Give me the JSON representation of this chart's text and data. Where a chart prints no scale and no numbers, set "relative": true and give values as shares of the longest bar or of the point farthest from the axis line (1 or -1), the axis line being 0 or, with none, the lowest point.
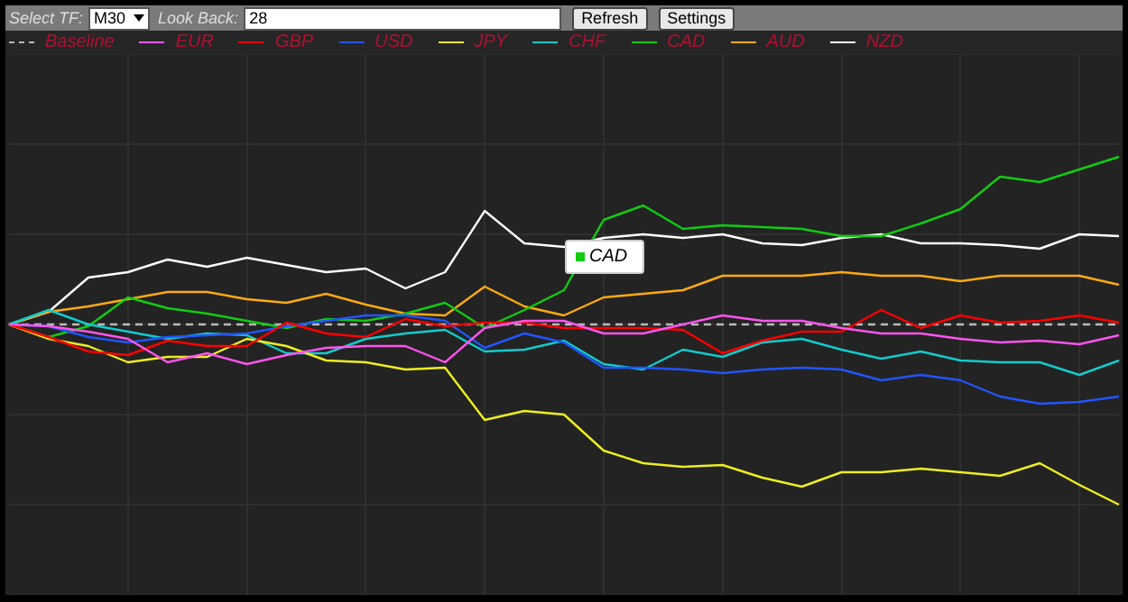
{
  "chart_data": {
    "type": "line",
    "relative": true,
    "categories": [
      null,
      null,
      null,
      null,
      null,
      null,
      null,
      null,
      null,
      null,
      null,
      null,
      null,
      null,
      null,
      null,
      null,
      null,
      null,
      null,
      null,
      null,
      null,
      null,
      null,
      null,
      null,
      null,
      null
    ],
    "series": [
      {
        "name": "EUR",
        "color": "#ff55ee",
        "values": [
          0,
          -0.01,
          -0.04,
          -0.08,
          -0.21,
          -0.16,
          -0.22,
          -0.17,
          -0.13,
          -0.12,
          -0.12,
          -0.21,
          -0.02,
          0.02,
          0.02,
          -0.05,
          -0.05,
          0,
          0.05,
          0.02,
          0.02,
          -0.02,
          -0.05,
          -0.05,
          -0.08,
          -0.1,
          -0.09,
          -0.11,
          -0.06
        ]
      },
      {
        "name": "GBP",
        "color": "#ff0000",
        "values": [
          0,
          -0.07,
          -0.15,
          -0.17,
          -0.09,
          -0.12,
          -0.12,
          0.01,
          -0.05,
          -0.07,
          0.03,
          -0.01,
          0.01,
          0.01,
          -0.02,
          -0.02,
          -0.02,
          -0.03,
          -0.16,
          -0.09,
          -0.04,
          -0.04,
          0.08,
          -0.02,
          0.05,
          0.01,
          0.02,
          0.05,
          0.01
        ]
      },
      {
        "name": "USD",
        "color": "#2255ff",
        "values": [
          0,
          -0.01,
          -0.07,
          -0.1,
          -0.07,
          -0.06,
          -0.05,
          -0.01,
          0.02,
          0.05,
          0.05,
          0.02,
          -0.13,
          -0.05,
          -0.1,
          -0.24,
          -0.24,
          -0.25,
          -0.27,
          -0.25,
          -0.24,
          -0.25,
          -0.31,
          -0.28,
          -0.31,
          -0.4,
          -0.44,
          -0.43,
          -0.4
        ]
      },
      {
        "name": "JPY",
        "color": "#eeee22",
        "values": [
          0,
          -0.08,
          -0.12,
          -0.21,
          -0.18,
          -0.18,
          -0.08,
          -0.12,
          -0.2,
          -0.21,
          -0.25,
          -0.24,
          -0.53,
          -0.48,
          -0.5,
          -0.7,
          -0.77,
          -0.79,
          -0.78,
          -0.85,
          -0.9,
          -0.82,
          -0.82,
          -0.8,
          -0.82,
          -0.84,
          -0.77,
          -0.89,
          -1
        ]
      },
      {
        "name": "CHF",
        "color": "#11cccc",
        "values": [
          0,
          0.08,
          0,
          -0.04,
          -0.08,
          -0.05,
          -0.06,
          -0.16,
          -0.16,
          -0.08,
          -0.05,
          -0.03,
          -0.15,
          -0.14,
          -0.09,
          -0.22,
          -0.25,
          -0.14,
          -0.18,
          -0.1,
          -0.08,
          -0.14,
          -0.19,
          -0.15,
          -0.2,
          -0.21,
          -0.21,
          -0.28,
          -0.2
        ]
      },
      {
        "name": "CAD",
        "color": "#11cc11",
        "values": [
          0,
          -0.07,
          -0.01,
          0.15,
          0.09,
          0.06,
          0.02,
          -0.02,
          0.03,
          0.02,
          0.06,
          0.12,
          -0.02,
          0.08,
          0.19,
          0.58,
          0.66,
          0.53,
          0.55,
          0.54,
          0.53,
          0.49,
          0.49,
          0.56,
          0.64,
          0.82,
          0.79,
          0.86,
          0.93
        ]
      },
      {
        "name": "AUD",
        "color": "#ffaa11",
        "values": [
          0,
          0.07,
          0.1,
          0.14,
          0.18,
          0.18,
          0.14,
          0.12,
          0.17,
          0.11,
          0.06,
          0.05,
          0.21,
          0.1,
          0.05,
          0.15,
          0.17,
          0.19,
          0.27,
          0.27,
          0.27,
          0.29,
          0.27,
          0.27,
          0.24,
          0.27,
          0.27,
          0.27,
          0.22
        ]
      },
      {
        "name": "NZD",
        "color": "#ffffff",
        "values": [
          0,
          0.07,
          0.26,
          0.29,
          0.36,
          0.32,
          0.37,
          0.33,
          0.29,
          0.31,
          0.2,
          0.29,
          0.63,
          0.45,
          0.43,
          0.48,
          0.5,
          0.48,
          0.5,
          0.45,
          0.44,
          0.48,
          0.5,
          0.45,
          0.45,
          0.44,
          0.42,
          0.5,
          0.49
        ]
      }
    ],
    "ref_lines": [
      {
        "axis": "y",
        "value": 0,
        "label": "Baseline",
        "color": "#bbbbbb",
        "line_style": "dashed"
      }
    ],
    "annotations": [
      "Select TF:",
      "M30",
      "Look Back:",
      "28",
      "Refresh",
      "Settings",
      {
        "text": "CAD",
        "y": 0.19
      }
    ],
    "legend": "top left",
    "grid": true,
    "marker": "none",
    "line_style": "solid"
  }
}
